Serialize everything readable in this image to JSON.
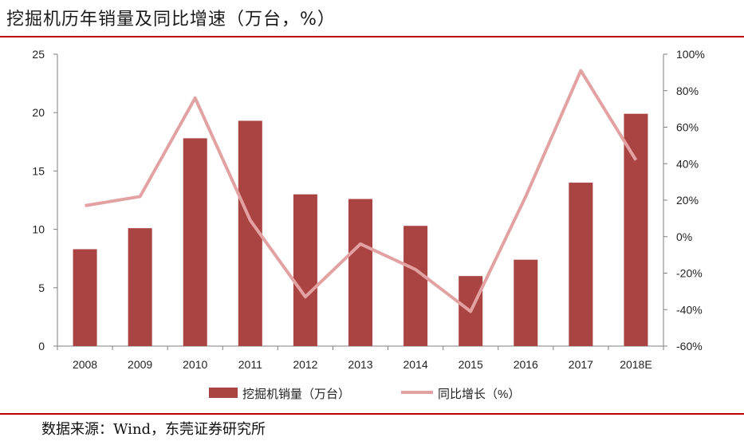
{
  "header": {
    "title": "挖掘机历年销量及同比增速（万台，%）"
  },
  "footer": {
    "source": "数据来源：Wind，东莞证券研究所"
  },
  "colors": {
    "bar": "#a94442",
    "line": "#e3a2a2",
    "rule": "#c00000"
  },
  "chart_data": {
    "type": "bar",
    "categories": [
      "2008",
      "2009",
      "2010",
      "2011",
      "2012",
      "2013",
      "2014",
      "2015",
      "2016",
      "2017",
      "2018E"
    ],
    "series": [
      {
        "name": "挖掘机销量（万台）",
        "type": "bar",
        "axis": "left",
        "values": [
          8.3,
          10.1,
          17.8,
          19.3,
          13.0,
          12.6,
          10.3,
          6.0,
          7.4,
          14.0,
          19.9
        ]
      },
      {
        "name": "同比增长（%）",
        "type": "line",
        "axis": "right",
        "values": [
          17,
          22,
          76,
          9,
          -33,
          -4,
          -18,
          -41,
          22,
          91,
          42
        ]
      }
    ],
    "y_left": {
      "min": 0,
      "max": 25,
      "ticks": [
        "0",
        "5",
        "10",
        "15",
        "20",
        "25"
      ]
    },
    "y_right": {
      "min": -60,
      "max": 100,
      "ticks": [
        "-60%",
        "-40%",
        "-20%",
        "0%",
        "20%",
        "40%",
        "60%",
        "80%",
        "100%"
      ]
    },
    "legend": {
      "position": "bottom"
    },
    "grid": false
  }
}
